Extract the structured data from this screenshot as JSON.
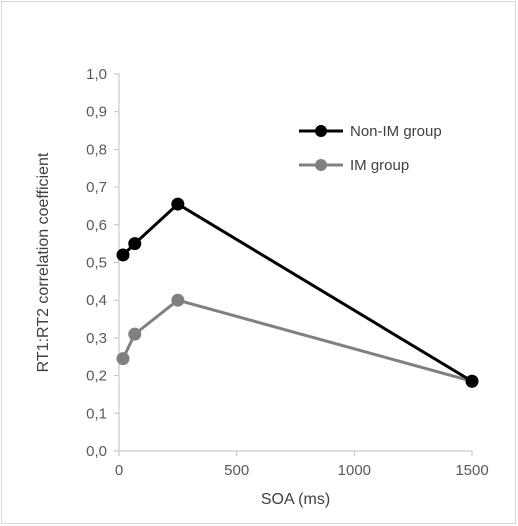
{
  "chart_data": {
    "type": "line",
    "title": "",
    "xlabel": "SOA (ms)",
    "ylabel": "RT1:RT2 correlation coefficient",
    "xlim": [
      0,
      1500
    ],
    "ylim": [
      0,
      1.0
    ],
    "x_ticks": [
      "0",
      "500",
      "1000",
      "1500"
    ],
    "y_ticks": [
      "0,0",
      "0,1",
      "0,2",
      "0,3",
      "0,4",
      "0,5",
      "0,6",
      "0,7",
      "0,8",
      "0,9",
      "1,0"
    ],
    "grid": false,
    "legend_position": "top-right",
    "series": [
      {
        "name": "Non-IM group",
        "color": "#000000",
        "points": [
          {
            "x": 17,
            "y": 0.52
          },
          {
            "x": 67,
            "y": 0.55
          },
          {
            "x": 250,
            "y": 0.655
          },
          {
            "x": 1500,
            "y": 0.185
          }
        ]
      },
      {
        "name": "IM group",
        "color": "#808080",
        "points": [
          {
            "x": 17,
            "y": 0.245
          },
          {
            "x": 67,
            "y": 0.31
          },
          {
            "x": 250,
            "y": 0.4
          },
          {
            "x": 1500,
            "y": 0.185
          }
        ]
      }
    ]
  }
}
